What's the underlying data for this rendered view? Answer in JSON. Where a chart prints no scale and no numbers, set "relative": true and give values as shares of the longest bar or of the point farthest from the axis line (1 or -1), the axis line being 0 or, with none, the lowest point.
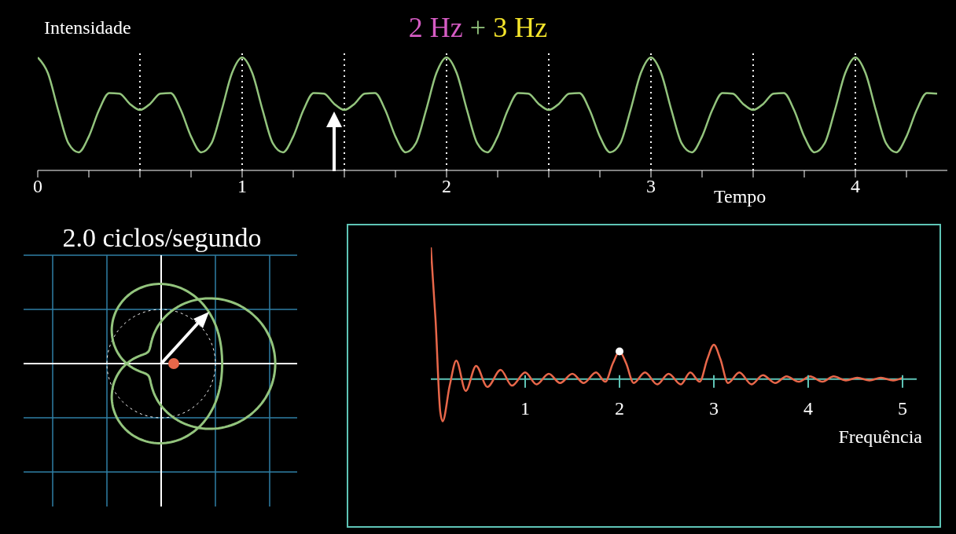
{
  "chart_data": [
    {
      "type": "line",
      "title": "2 Hz + 3 Hz",
      "ylabel": "Intensidade",
      "xlabel": "Tempo",
      "relative": true,
      "color": "#93c47d",
      "xlim": [
        0,
        4.45
      ],
      "xticks": [
        0,
        {
          "value": 0.25,
          "label": null
        },
        {
          "value": 0.5,
          "label": null
        },
        {
          "value": 0.75,
          "label": null
        },
        1,
        {
          "value": 1.25,
          "label": null
        },
        {
          "value": 1.5,
          "label": null
        },
        {
          "value": 1.75,
          "label": null
        },
        2,
        {
          "value": 2.25,
          "label": null
        },
        {
          "value": 2.5,
          "label": null
        },
        {
          "value": 2.75,
          "label": null
        },
        3,
        {
          "value": 3.25,
          "label": null
        },
        {
          "value": 3.5,
          "label": null
        },
        {
          "value": 3.75,
          "label": null
        },
        4,
        {
          "value": 4.25,
          "label": null
        }
      ],
      "ref_lines": [
        {
          "axis": "x",
          "value": 0.5,
          "line_style": "dotted"
        },
        {
          "axis": "x",
          "value": 1,
          "line_style": "dotted"
        },
        {
          "axis": "x",
          "value": 1.5,
          "line_style": "dotted"
        },
        {
          "axis": "x",
          "value": 2,
          "line_style": "dotted"
        },
        {
          "axis": "x",
          "value": 2.5,
          "line_style": "dotted"
        },
        {
          "axis": "x",
          "value": 3,
          "line_style": "dotted"
        },
        {
          "axis": "x",
          "value": 3.5,
          "line_style": "dotted"
        },
        {
          "axis": "x",
          "value": 4,
          "line_style": "dotted"
        }
      ],
      "x": [
        0,
        0.05,
        0.1,
        0.15,
        0.2,
        0.25,
        0.3,
        0.35,
        0.4,
        0.45,
        0.5,
        0.55,
        0.6,
        0.65,
        0.7,
        0.75,
        0.8,
        0.85,
        0.9,
        0.95,
        1,
        1.05,
        1.1,
        1.15,
        1.2,
        1.25,
        1.3,
        1.35,
        1.4,
        1.45,
        1.5,
        1.55,
        1.6,
        1.65,
        1.7,
        1.75,
        1.8,
        1.85,
        1.9,
        1.95,
        2,
        2.05,
        2.1,
        2.15,
        2.2,
        2.25,
        2.3,
        2.35,
        2.4,
        2.45,
        2.5,
        2.55,
        2.6,
        2.65,
        2.7,
        2.75,
        2.8,
        2.85,
        2.9,
        2.95,
        3,
        3.05,
        3.1,
        3.15,
        3.2,
        3.25,
        3.3,
        3.35,
        3.4,
        3.45,
        3.5,
        3.55,
        3.6,
        3.65,
        3.7,
        3.75,
        3.8,
        3.85,
        3.9,
        3.95,
        4,
        4.05,
        4.1,
        4.15,
        4.2,
        4.25,
        4.3,
        4.35,
        4.4
      ],
      "values": [
        1,
        0.86,
        0.535,
        0.24,
        0.16,
        0.3,
        0.535,
        0.685,
        0.68,
        0.59,
        0.535,
        0.59,
        0.68,
        0.685,
        0.535,
        0.3,
        0.16,
        0.24,
        0.535,
        0.86,
        1,
        0.86,
        0.535,
        0.24,
        0.16,
        0.3,
        0.535,
        0.685,
        0.68,
        0.59,
        0.535,
        0.59,
        0.68,
        0.685,
        0.535,
        0.3,
        0.16,
        0.24,
        0.535,
        0.86,
        1,
        0.86,
        0.535,
        0.24,
        0.16,
        0.3,
        0.535,
        0.685,
        0.68,
        0.59,
        0.535,
        0.59,
        0.68,
        0.685,
        0.535,
        0.3,
        0.16,
        0.24,
        0.535,
        0.86,
        1,
        0.86,
        0.535,
        0.24,
        0.16,
        0.3,
        0.535,
        0.685,
        0.68,
        0.59,
        0.535,
        0.59,
        0.68,
        0.685,
        0.535,
        0.3,
        0.16,
        0.24,
        0.535,
        0.86,
        1,
        0.86,
        0.535,
        0.24,
        0.16,
        0.3,
        0.535,
        0.685,
        0.68
      ]
    },
    {
      "type": "other",
      "title": "2.0 ciclos/segundo"
    },
    {
      "type": "line",
      "xlabel": "Frequência",
      "relative": true,
      "xlim": [
        0,
        5.15
      ],
      "xticks": [
        1,
        2,
        3,
        4,
        5
      ],
      "series": [
        {
          "type": "line",
          "color": "#e8674a",
          "x": [
            0,
            0.05,
            0.1,
            0.125,
            0.2,
            0.27,
            0.37,
            0.48,
            0.6,
            0.74,
            0.86,
            1,
            1.12,
            1.25,
            1.37,
            1.5,
            1.62,
            1.75,
            1.85,
            1.93,
            2,
            2.07,
            2.15,
            2.27,
            2.4,
            2.52,
            2.65,
            2.75,
            2.85,
            2.93,
            3,
            3.07,
            3.15,
            3.27,
            3.4,
            3.52,
            3.65,
            3.77,
            3.9,
            4.02,
            4.15,
            4.27,
            4.4,
            4.52,
            4.65,
            4.77,
            4.9,
            5
          ],
          "values": [
            1,
            0.45,
            -0.25,
            -0.32,
            -0.05,
            0.14,
            -0.09,
            0.1,
            -0.06,
            0.07,
            -0.05,
            0.05,
            -0.04,
            0.04,
            -0.03,
            0.04,
            -0.03,
            0.05,
            -0.02,
            0.12,
            0.21,
            0.12,
            -0.03,
            0.05,
            -0.04,
            0.04,
            -0.04,
            0.05,
            -0.02,
            0.15,
            0.26,
            0.15,
            -0.03,
            0.05,
            -0.04,
            0.03,
            -0.03,
            0.02,
            -0.02,
            0.02,
            -0.02,
            0.02,
            -0.01,
            0.01,
            -0.01,
            0.01,
            -0.01,
            0.01
          ]
        },
        {
          "type": "scatter",
          "color": "#ffffff",
          "x": [
            2
          ],
          "values": [
            0.21
          ]
        }
      ]
    }
  ]
}
